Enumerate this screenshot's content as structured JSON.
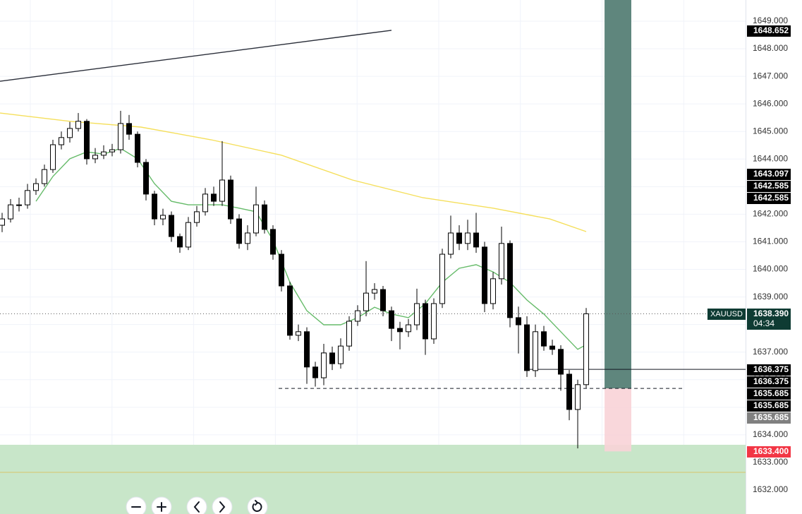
{
  "chart_data": {
    "type": "candlestick",
    "symbol": "XAUUSD",
    "countdown": "04:34",
    "xlim": [
      -0.25,
      87.83
    ],
    "ylim": [
      1631.13,
      1649.768
    ],
    "grid": true,
    "yticks": [
      {
        "value": 1632,
        "label": "1632.000"
      },
      {
        "value": 1633,
        "label": "1633.000"
      },
      {
        "value": 1634,
        "label": "1634.000"
      },
      {
        "value": 1635,
        "label": "1635.000"
      },
      {
        "value": 1636,
        "label": "1636.000"
      },
      {
        "value": 1637,
        "label": "1637.000"
      },
      {
        "value": 1638,
        "label": "1638.000"
      },
      {
        "value": 1639,
        "label": "1639.000"
      },
      {
        "value": 1640,
        "label": "1640.000"
      },
      {
        "value": 1641,
        "label": "1641.000"
      },
      {
        "value": 1642,
        "label": "1642.000"
      },
      {
        "value": 1643,
        "label": "1643.000"
      },
      {
        "value": 1644,
        "label": "1644.000"
      },
      {
        "value": 1645,
        "label": "1645.000"
      },
      {
        "value": 1646,
        "label": "1646.000"
      },
      {
        "value": 1647,
        "label": "1647.000"
      },
      {
        "value": 1648,
        "label": "1648.000"
      },
      {
        "value": 1649,
        "label": "1649.000"
      }
    ],
    "up_color": "#ffffff",
    "down_color": "#000000",
    "open": [
      1641.6,
      1641.83,
      1642.34,
      1642.34,
      1642.86,
      1643.11,
      1643.62,
      1644.52,
      1644.78,
      1645.11,
      1645.37,
      1644.01,
      1644.14,
      1644.26,
      1644.34,
      1645.29,
      1644.9,
      1643.88,
      1642.73,
      1641.83,
      1641.96,
      1641.19,
      1640.81,
      1641.7,
      1642.09,
      1642.73,
      1642.47,
      1643.24,
      1641.83,
      1640.94,
      1641.32,
      1642.34,
      1641.45,
      1640.55,
      1639.4,
      1637.61,
      1637.74,
      1636.46,
      1636.07,
      1636.97,
      1636.58,
      1637.22,
      1638.12,
      1638.5,
      1639.14,
      1639.27,
      1638.5,
      1637.86,
      1637.74,
      1637.99,
      1638.76,
      1637.48,
      1638.76,
      1640.55,
      1641.32,
      1640.94,
      1641.32,
      1640.81,
      1638.76,
      1639.66,
      1640.94,
      1638.25,
      1637.99,
      1636.33,
      1637.74,
      1637.22,
      1637.1,
      1636.2,
      1634.92,
      1635.82
    ],
    "high": [
      1642.05,
      1642.55,
      1642.6,
      1643.1,
      1643.3,
      1643.8,
      1644.7,
      1645.0,
      1645.35,
      1645.67,
      1645.45,
      1644.4,
      1644.5,
      1644.55,
      1645.75,
      1645.6,
      1645.0,
      1644.0,
      1642.85,
      1642.2,
      1642.1,
      1641.3,
      1641.9,
      1642.3,
      1642.95,
      1643.0,
      1644.65,
      1643.4,
      1642.0,
      1641.6,
      1643.0,
      1642.5,
      1641.6,
      1640.7,
      1639.55,
      1638.0,
      1637.9,
      1636.65,
      1637.3,
      1637.2,
      1637.5,
      1638.3,
      1638.7,
      1640.3,
      1639.5,
      1639.4,
      1638.65,
      1638.1,
      1638.2,
      1639.3,
      1638.9,
      1638.95,
      1640.75,
      1641.95,
      1641.6,
      1641.8,
      1642.05,
      1641.0,
      1639.9,
      1641.55,
      1641.05,
      1638.65,
      1638.3,
      1638.0,
      1637.95,
      1637.45,
      1637.25,
      1636.35,
      1636.0,
      1638.6
    ],
    "low": [
      1641.35,
      1641.7,
      1642.1,
      1642.2,
      1642.7,
      1643.0,
      1643.5,
      1644.35,
      1644.6,
      1645.0,
      1643.8,
      1643.85,
      1644.0,
      1644.1,
      1644.2,
      1644.7,
      1643.7,
      1642.5,
      1641.6,
      1641.6,
      1641.0,
      1640.6,
      1640.7,
      1641.55,
      1641.95,
      1642.3,
      1642.3,
      1641.65,
      1640.75,
      1640.7,
      1641.2,
      1641.3,
      1640.35,
      1639.2,
      1637.45,
      1637.4,
      1635.85,
      1635.75,
      1635.8,
      1636.35,
      1636.4,
      1637.05,
      1637.95,
      1638.3,
      1638.9,
      1638.3,
      1637.4,
      1637.1,
      1637.55,
      1637.8,
      1636.9,
      1637.3,
      1638.6,
      1640.4,
      1640.7,
      1640.7,
      1640.6,
      1638.45,
      1638.55,
      1639.45,
      1637.9,
      1636.95,
      1636.1,
      1636.1,
      1637.05,
      1636.9,
      1635.6,
      1634.53,
      1633.51,
      1635.7
    ],
    "close": [
      1641.83,
      1642.34,
      1642.34,
      1642.86,
      1643.11,
      1643.62,
      1644.52,
      1644.78,
      1645.11,
      1645.37,
      1644.01,
      1644.14,
      1644.26,
      1644.34,
      1645.29,
      1644.9,
      1643.88,
      1642.73,
      1641.83,
      1641.96,
      1641.19,
      1640.81,
      1641.7,
      1642.09,
      1642.73,
      1642.47,
      1643.24,
      1641.83,
      1640.94,
      1641.32,
      1642.34,
      1641.45,
      1640.55,
      1639.4,
      1637.61,
      1637.74,
      1636.46,
      1636.07,
      1636.97,
      1636.58,
      1637.22,
      1638.12,
      1638.5,
      1639.14,
      1639.27,
      1638.5,
      1637.86,
      1637.74,
      1637.99,
      1638.76,
      1637.48,
      1638.76,
      1640.55,
      1641.32,
      1640.94,
      1641.32,
      1640.81,
      1638.76,
      1639.66,
      1640.94,
      1638.25,
      1637.99,
      1636.33,
      1637.74,
      1637.22,
      1637.1,
      1636.2,
      1634.92,
      1635.82,
      1638.39
    ],
    "lines": [
      {
        "color": "#f5df5b",
        "x": [
          -0.25,
          8,
          16.4,
          24.7,
          33,
          41.4,
          49.7,
          58,
          64.7,
          69
        ],
        "values": [
          1645.67,
          1645.37,
          1645.16,
          1644.7,
          1644.14,
          1643.24,
          1642.6,
          1642.22,
          1641.83,
          1641.37
        ]
      },
      {
        "color": "#66bb6a",
        "x": [
          4,
          6,
          8,
          10,
          12,
          14,
          16,
          18,
          20,
          22,
          24,
          26,
          28,
          30,
          32,
          34,
          36,
          38,
          40,
          42,
          44,
          46,
          48,
          50,
          52,
          54,
          56,
          58,
          60,
          62,
          64,
          66,
          68,
          69
        ],
        "values": [
          1642.47,
          1643.37,
          1644.01,
          1644.26,
          1644.18,
          1644.39,
          1644.01,
          1643.11,
          1642.47,
          1642.34,
          1642.34,
          1642.34,
          1642.22,
          1642.09,
          1641.06,
          1639.53,
          1638.5,
          1637.99,
          1637.99,
          1638.25,
          1638.63,
          1638.38,
          1638.25,
          1638.76,
          1639.53,
          1640.04,
          1640.17,
          1639.91,
          1639.53,
          1638.89,
          1638.38,
          1637.74,
          1637.1,
          1637.27
        ]
      },
      {
        "color": "#2a2e39",
        "x": [
          -0.25,
          46
        ],
        "values": [
          1646.82,
          1648.67
        ]
      }
    ],
    "hlines": [
      {
        "value": 1638.39,
        "x": [
          -0.25,
          87.83
        ],
        "color": "#555555",
        "style": "dotted"
      },
      {
        "value": 1635.685,
        "x": [
          32.67,
          80.58
        ],
        "color": "#131722",
        "style": "dashed"
      },
      {
        "value": 1636.375,
        "x": [
          62.25,
          87.83
        ],
        "color": "#131722",
        "style": "solid"
      },
      {
        "value": 1632.64,
        "x": [
          -0.25,
          87.83
        ],
        "color": "#d8c66a",
        "style": "solid"
      }
    ],
    "zone": {
      "value": 1633.64,
      "color": "#c8e6c9"
    },
    "position": {
      "entry": 1635.685,
      "stop": 1633.4,
      "x": [
        71.17,
        74.33
      ],
      "target_color": "#5f867d",
      "stop_color": "#f8d3d7"
    },
    "price_labels": [
      {
        "value": 1648.652,
        "label": "1648.652",
        "color": "#000000"
      },
      {
        "value": 1643.097,
        "label": "1643.097",
        "color": "#000000"
      },
      {
        "value": 1642.585,
        "label": "1642.585",
        "color": "#000000"
      },
      {
        "value": 1642.585,
        "label": "1642.585",
        "color": "#000000"
      },
      {
        "value": 1638.39,
        "label": "1638.390",
        "color": "#0e3b33"
      },
      {
        "value": 1636.375,
        "label": "1636.375",
        "color": "#000000"
      },
      {
        "value": 1636.375,
        "label": "1636.375",
        "color": "#000000"
      },
      {
        "value": 1635.685,
        "label": "1635.685",
        "color": "#000000"
      },
      {
        "value": 1635.685,
        "label": "1635.685",
        "color": "#000000"
      },
      {
        "value": 1635.685,
        "label": "1635.685",
        "color": "#808080"
      },
      {
        "value": 1633.4,
        "label": "1633.400",
        "color": "#f23645"
      }
    ]
  }
}
